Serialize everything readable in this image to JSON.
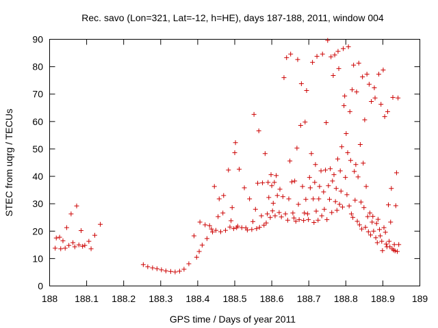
{
  "chart_data": {
    "type": "scatter",
    "title": "Rec. savo (Lon=321, Lat=-12, h=HE), days 187-188, 2011, window 004",
    "xlabel": "GPS time / Days of year 2011",
    "ylabel": "STEC from uqrg / TECUs",
    "xlim": [
      188,
      189
    ],
    "ylim": [
      0,
      90
    ],
    "xticks": [
      188,
      188.1,
      188.2,
      188.3,
      188.4,
      188.5,
      188.6,
      188.7,
      188.8,
      188.9,
      189
    ],
    "xtick_labels": [
      "188",
      "188.1",
      "188.2",
      "188.3",
      "188.4",
      "188.5",
      "188.6",
      "188.7",
      "188.8",
      "188.9",
      "189"
    ],
    "yticks": [
      0,
      10,
      20,
      30,
      40,
      50,
      60,
      70,
      80,
      90
    ],
    "ytick_labels": [
      "0",
      "10",
      "20",
      "30",
      "40",
      "50",
      "60",
      "70",
      "80",
      "90"
    ],
    "grid": false,
    "marker": "plus",
    "color": "#cc0000",
    "points": [
      [
        188.015,
        13.8
      ],
      [
        188.018,
        17.5
      ],
      [
        188.027,
        17.8
      ],
      [
        188.03,
        13.6
      ],
      [
        188.036,
        16.5
      ],
      [
        188.042,
        13.8
      ],
      [
        188.046,
        21.3
      ],
      [
        188.052,
        14.8
      ],
      [
        188.058,
        26.3
      ],
      [
        188.063,
        15.8
      ],
      [
        188.068,
        14.3
      ],
      [
        188.073,
        29.2
      ],
      [
        188.079,
        15.0
      ],
      [
        188.085,
        20.2
      ],
      [
        188.089,
        14.5
      ],
      [
        188.095,
        14.8
      ],
      [
        188.106,
        16.3
      ],
      [
        188.112,
        13.6
      ],
      [
        188.122,
        18.5
      ],
      [
        188.137,
        22.5
      ],
      [
        188.253,
        7.8
      ],
      [
        188.265,
        7.0
      ],
      [
        188.278,
        6.6
      ],
      [
        188.29,
        6.3
      ],
      [
        188.302,
        5.9
      ],
      [
        188.314,
        5.5
      ],
      [
        188.327,
        5.3
      ],
      [
        188.339,
        5.1
      ],
      [
        188.351,
        5.4
      ],
      [
        188.363,
        6.1
      ],
      [
        188.376,
        8.1
      ],
      [
        188.39,
        18.3
      ],
      [
        188.397,
        10.5
      ],
      [
        188.404,
        12.6
      ],
      [
        188.406,
        23.3
      ],
      [
        188.412,
        14.9
      ],
      [
        188.42,
        22.3
      ],
      [
        188.425,
        17.3
      ],
      [
        188.432,
        22.0
      ],
      [
        188.437,
        20.8
      ],
      [
        188.44,
        19.7
      ],
      [
        188.445,
        36.3
      ],
      [
        188.449,
        20.3
      ],
      [
        188.455,
        25.3
      ],
      [
        188.458,
        31.8
      ],
      [
        188.462,
        19.8
      ],
      [
        188.468,
        26.6
      ],
      [
        188.47,
        33.0
      ],
      [
        188.475,
        20.3
      ],
      [
        188.483,
        42.3
      ],
      [
        188.487,
        21.5
      ],
      [
        188.49,
        23.8
      ],
      [
        188.493,
        28.6
      ],
      [
        188.497,
        20.9
      ],
      [
        188.5,
        48.6
      ],
      [
        188.502,
        52.3
      ],
      [
        188.505,
        21.3
      ],
      [
        188.508,
        21.8
      ],
      [
        188.512,
        42.6
      ],
      [
        188.519,
        21.3
      ],
      [
        188.526,
        35.8
      ],
      [
        188.53,
        21.2
      ],
      [
        188.534,
        20.4
      ],
      [
        188.54,
        31.8
      ],
      [
        188.546,
        20.6
      ],
      [
        188.549,
        23.5
      ],
      [
        188.552,
        62.6
      ],
      [
        188.556,
        28.0
      ],
      [
        188.559,
        20.9
      ],
      [
        188.562,
        37.5
      ],
      [
        188.565,
        56.6
      ],
      [
        188.567,
        21.4
      ],
      [
        188.572,
        25.6
      ],
      [
        188.575,
        37.6
      ],
      [
        188.579,
        22.2
      ],
      [
        188.582,
        48.3
      ],
      [
        188.585,
        23.0
      ],
      [
        188.588,
        26.3
      ],
      [
        188.59,
        37.8
      ],
      [
        188.592,
        32.3
      ],
      [
        188.596,
        25.0
      ],
      [
        188.598,
        40.6
      ],
      [
        188.6,
        36.6
      ],
      [
        188.602,
        27.4
      ],
      [
        188.604,
        30.2
      ],
      [
        188.607,
        37.8
      ],
      [
        188.609,
        25.6
      ],
      [
        188.612,
        40.3
      ],
      [
        188.615,
        33.0
      ],
      [
        188.62,
        26.8
      ],
      [
        188.622,
        35.3
      ],
      [
        188.626,
        25.2
      ],
      [
        188.63,
        32.6
      ],
      [
        188.633,
        76.0
      ],
      [
        188.637,
        26.3
      ],
      [
        188.64,
        83.3
      ],
      [
        188.643,
        24.0
      ],
      [
        188.646,
        31.8
      ],
      [
        188.649,
        45.6
      ],
      [
        188.651,
        84.6
      ],
      [
        188.654,
        38.0
      ],
      [
        188.657,
        26.6
      ],
      [
        188.66,
        24.8
      ],
      [
        188.662,
        38.3
      ],
      [
        188.665,
        23.6
      ],
      [
        188.668,
        50.3
      ],
      [
        188.67,
        82.6
      ],
      [
        188.672,
        29.8
      ],
      [
        188.674,
        24.2
      ],
      [
        188.678,
        58.6
      ],
      [
        188.68,
        73.8
      ],
      [
        188.683,
        36.3
      ],
      [
        188.686,
        23.9
      ],
      [
        188.688,
        26.6
      ],
      [
        188.69,
        59.8
      ],
      [
        188.692,
        31.6
      ],
      [
        188.694,
        71.3
      ],
      [
        188.697,
        26.3
      ],
      [
        188.699,
        24.2
      ],
      [
        188.702,
        39.6
      ],
      [
        188.704,
        35.8
      ],
      [
        188.707,
        48.3
      ],
      [
        188.71,
        81.6
      ],
      [
        188.712,
        31.8
      ],
      [
        188.714,
        23.2
      ],
      [
        188.716,
        37.8
      ],
      [
        188.718,
        44.3
      ],
      [
        188.72,
        27.3
      ],
      [
        188.722,
        83.8
      ],
      [
        188.725,
        24.0
      ],
      [
        188.727,
        31.8
      ],
      [
        188.729,
        36.3
      ],
      [
        188.733,
        42.0
      ],
      [
        188.735,
        25.6
      ],
      [
        188.737,
        84.6
      ],
      [
        188.74,
        34.3
      ],
      [
        188.742,
        28.0
      ],
      [
        188.745,
        42.3
      ],
      [
        188.747,
        59.6
      ],
      [
        188.749,
        24.2
      ],
      [
        188.751,
        89.6
      ],
      [
        188.753,
        36.6
      ],
      [
        188.756,
        31.6
      ],
      [
        188.758,
        42.8
      ],
      [
        188.76,
        83.6
      ],
      [
        188.762,
        26.8
      ],
      [
        188.764,
        38.3
      ],
      [
        188.766,
        76.8
      ],
      [
        188.768,
        40.6
      ],
      [
        188.77,
        84.3
      ],
      [
        188.772,
        30.8
      ],
      [
        188.774,
        35.6
      ],
      [
        188.776,
        27.6
      ],
      [
        188.778,
        46.3
      ],
      [
        188.779,
        85.6
      ],
      [
        188.781,
        79.3
      ],
      [
        188.783,
        29.8
      ],
      [
        188.785,
        42.0
      ],
      [
        188.787,
        34.6
      ],
      [
        188.789,
        50.8
      ],
      [
        188.791,
        28.8
      ],
      [
        188.793,
        86.6
      ],
      [
        188.795,
        65.8
      ],
      [
        188.797,
        69.3
      ],
      [
        188.799,
        39.6
      ],
      [
        188.801,
        55.6
      ],
      [
        188.803,
        33.3
      ],
      [
        188.805,
        48.6
      ],
      [
        188.807,
        87.3
      ],
      [
        188.809,
        29.2
      ],
      [
        188.811,
        63.6
      ],
      [
        188.813,
        45.8
      ],
      [
        188.815,
        26.3
      ],
      [
        188.817,
        71.6
      ],
      [
        188.819,
        25.0
      ],
      [
        188.821,
        80.6
      ],
      [
        188.823,
        41.8
      ],
      [
        188.825,
        31.3
      ],
      [
        188.827,
        44.3
      ],
      [
        188.829,
        70.8
      ],
      [
        188.831,
        23.6
      ],
      [
        188.833,
        39.8
      ],
      [
        188.835,
        81.3
      ],
      [
        188.837,
        22.3
      ],
      [
        188.839,
        51.6
      ],
      [
        188.841,
        30.6
      ],
      [
        188.843,
        20.8
      ],
      [
        188.845,
        76.3
      ],
      [
        188.847,
        44.8
      ],
      [
        188.849,
        28.6
      ],
      [
        188.851,
        60.6
      ],
      [
        188.853,
        21.4
      ],
      [
        188.855,
        36.3
      ],
      [
        188.857,
        77.3
      ],
      [
        188.859,
        25.3
      ],
      [
        188.861,
        19.8
      ],
      [
        188.863,
        73.6
      ],
      [
        188.865,
        26.6
      ],
      [
        188.867,
        18.6
      ],
      [
        188.869,
        67.3
      ],
      [
        188.871,
        23.3
      ],
      [
        188.873,
        25.4
      ],
      [
        188.875,
        20.0
      ],
      [
        188.877,
        72.3
      ],
      [
        188.879,
        68.6
      ],
      [
        188.881,
        17.6
      ],
      [
        188.883,
        22.8
      ],
      [
        188.885,
        15.8
      ],
      [
        188.887,
        24.3
      ],
      [
        188.889,
        77.3
      ],
      [
        188.891,
        20.6
      ],
      [
        188.893,
        18.3
      ],
      [
        188.895,
        66.3
      ],
      [
        188.897,
        16.3
      ],
      [
        188.899,
        12.9
      ],
      [
        188.901,
        78.8
      ],
      [
        188.903,
        21.3
      ],
      [
        188.905,
        61.8
      ],
      [
        188.907,
        19.6
      ],
      [
        188.909,
        15.3
      ],
      [
        188.911,
        14.3
      ],
      [
        188.913,
        63.6
      ],
      [
        188.915,
        29.6
      ],
      [
        188.917,
        16.3
      ],
      [
        188.919,
        14.3
      ],
      [
        188.921,
        23.3
      ],
      [
        188.923,
        35.6
      ],
      [
        188.925,
        13.6
      ],
      [
        188.927,
        68.8
      ],
      [
        188.929,
        13.1
      ],
      [
        188.931,
        15.1
      ],
      [
        188.933,
        12.8
      ],
      [
        188.935,
        29.3
      ],
      [
        188.937,
        41.3
      ],
      [
        188.939,
        12.6
      ],
      [
        188.941,
        68.6
      ],
      [
        188.943,
        15.1
      ]
    ]
  }
}
